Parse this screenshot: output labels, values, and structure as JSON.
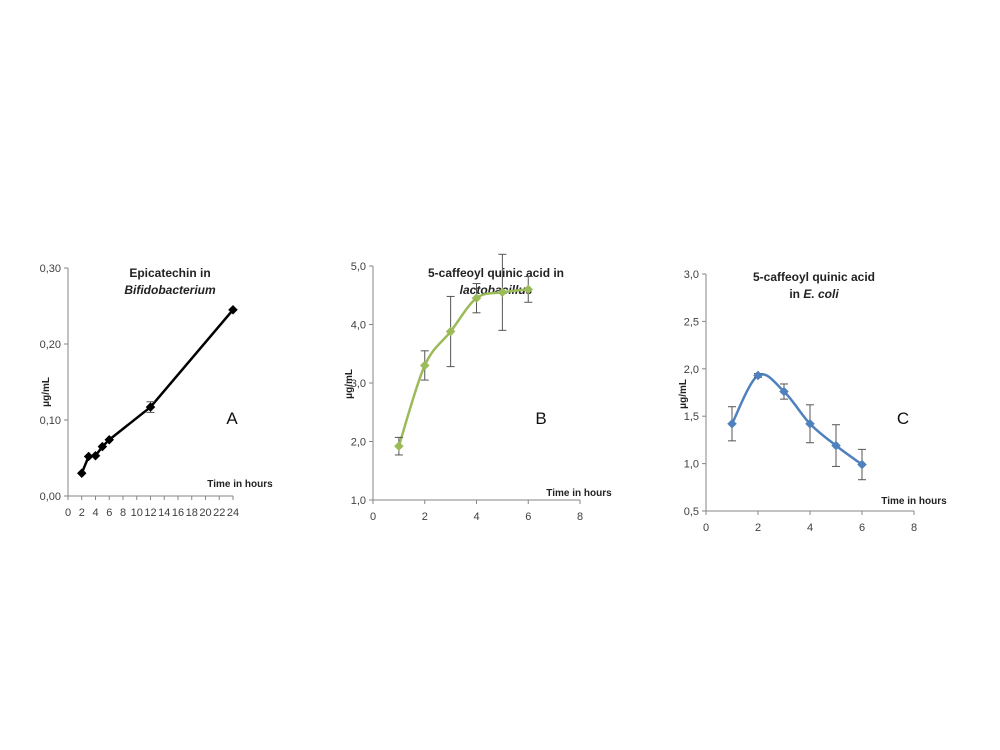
{
  "chart_data": [
    {
      "type": "line",
      "title_line1": "Epicatechin in",
      "title_line2": "Bifidobacterium",
      "xlabel": "Time in hours",
      "ylabel": "μg/mL",
      "panel_letter": "A",
      "xlim": [
        0,
        24
      ],
      "ylim": [
        0,
        0.3
      ],
      "x_ticks": [
        "0",
        "2",
        "4",
        "6",
        "8",
        "10",
        "12",
        "14",
        "16",
        "18",
        "20",
        "22",
        "24"
      ],
      "y_ticks": [
        "0,00",
        "0,10",
        "0,20",
        "0,30"
      ],
      "color": "#000000",
      "marker": "diamond",
      "smooth": false,
      "series": [
        {
          "x": [
            2,
            3,
            4,
            5,
            6,
            12,
            24
          ],
          "y": [
            0.03,
            0.052,
            0.053,
            0.065,
            0.074,
            0.117,
            0.245
          ],
          "err": [
            0,
            0,
            0,
            0,
            0,
            0.007,
            0
          ]
        }
      ]
    },
    {
      "type": "line",
      "title_line1": "5-caffeoyl quinic acid in",
      "title_line2": "lactobacillus",
      "xlabel": "Time in hours",
      "ylabel": "μg/mL",
      "panel_letter": "B",
      "xlim": [
        0,
        8
      ],
      "ylim": [
        1.0,
        5.0
      ],
      "x_ticks": [
        "0",
        "2",
        "4",
        "6",
        "8"
      ],
      "y_ticks": [
        "1,0",
        "2,0",
        "3,0",
        "4,0",
        "5,0"
      ],
      "color": "#9bbb59",
      "marker": "diamond",
      "smooth": true,
      "series": [
        {
          "x": [
            1,
            2,
            3,
            4,
            5,
            6
          ],
          "y": [
            1.92,
            3.3,
            3.88,
            4.45,
            4.55,
            4.6
          ],
          "err": [
            0.15,
            0.25,
            0.6,
            0.25,
            0.65,
            0.22
          ]
        }
      ]
    },
    {
      "type": "line",
      "title_line1": "5-caffeoyl quinic acid",
      "title_line2_prefix": "in ",
      "title_line2": "E. coli",
      "xlabel": "Time in hours",
      "ylabel": "μg/mL",
      "panel_letter": "C",
      "xlim": [
        0,
        8
      ],
      "ylim": [
        0.5,
        3.0
      ],
      "x_ticks": [
        "0",
        "2",
        "4",
        "6",
        "8"
      ],
      "y_ticks": [
        "0,5",
        "1,0",
        "1,5",
        "2,0",
        "2,5",
        "3,0"
      ],
      "color": "#4f81bd",
      "marker": "diamond",
      "smooth": true,
      "series": [
        {
          "x": [
            1,
            2,
            3,
            4,
            5,
            6
          ],
          "y": [
            1.42,
            1.93,
            1.76,
            1.42,
            1.19,
            0.99
          ],
          "err": [
            0.18,
            0.02,
            0.08,
            0.2,
            0.22,
            0.16
          ]
        }
      ]
    }
  ]
}
